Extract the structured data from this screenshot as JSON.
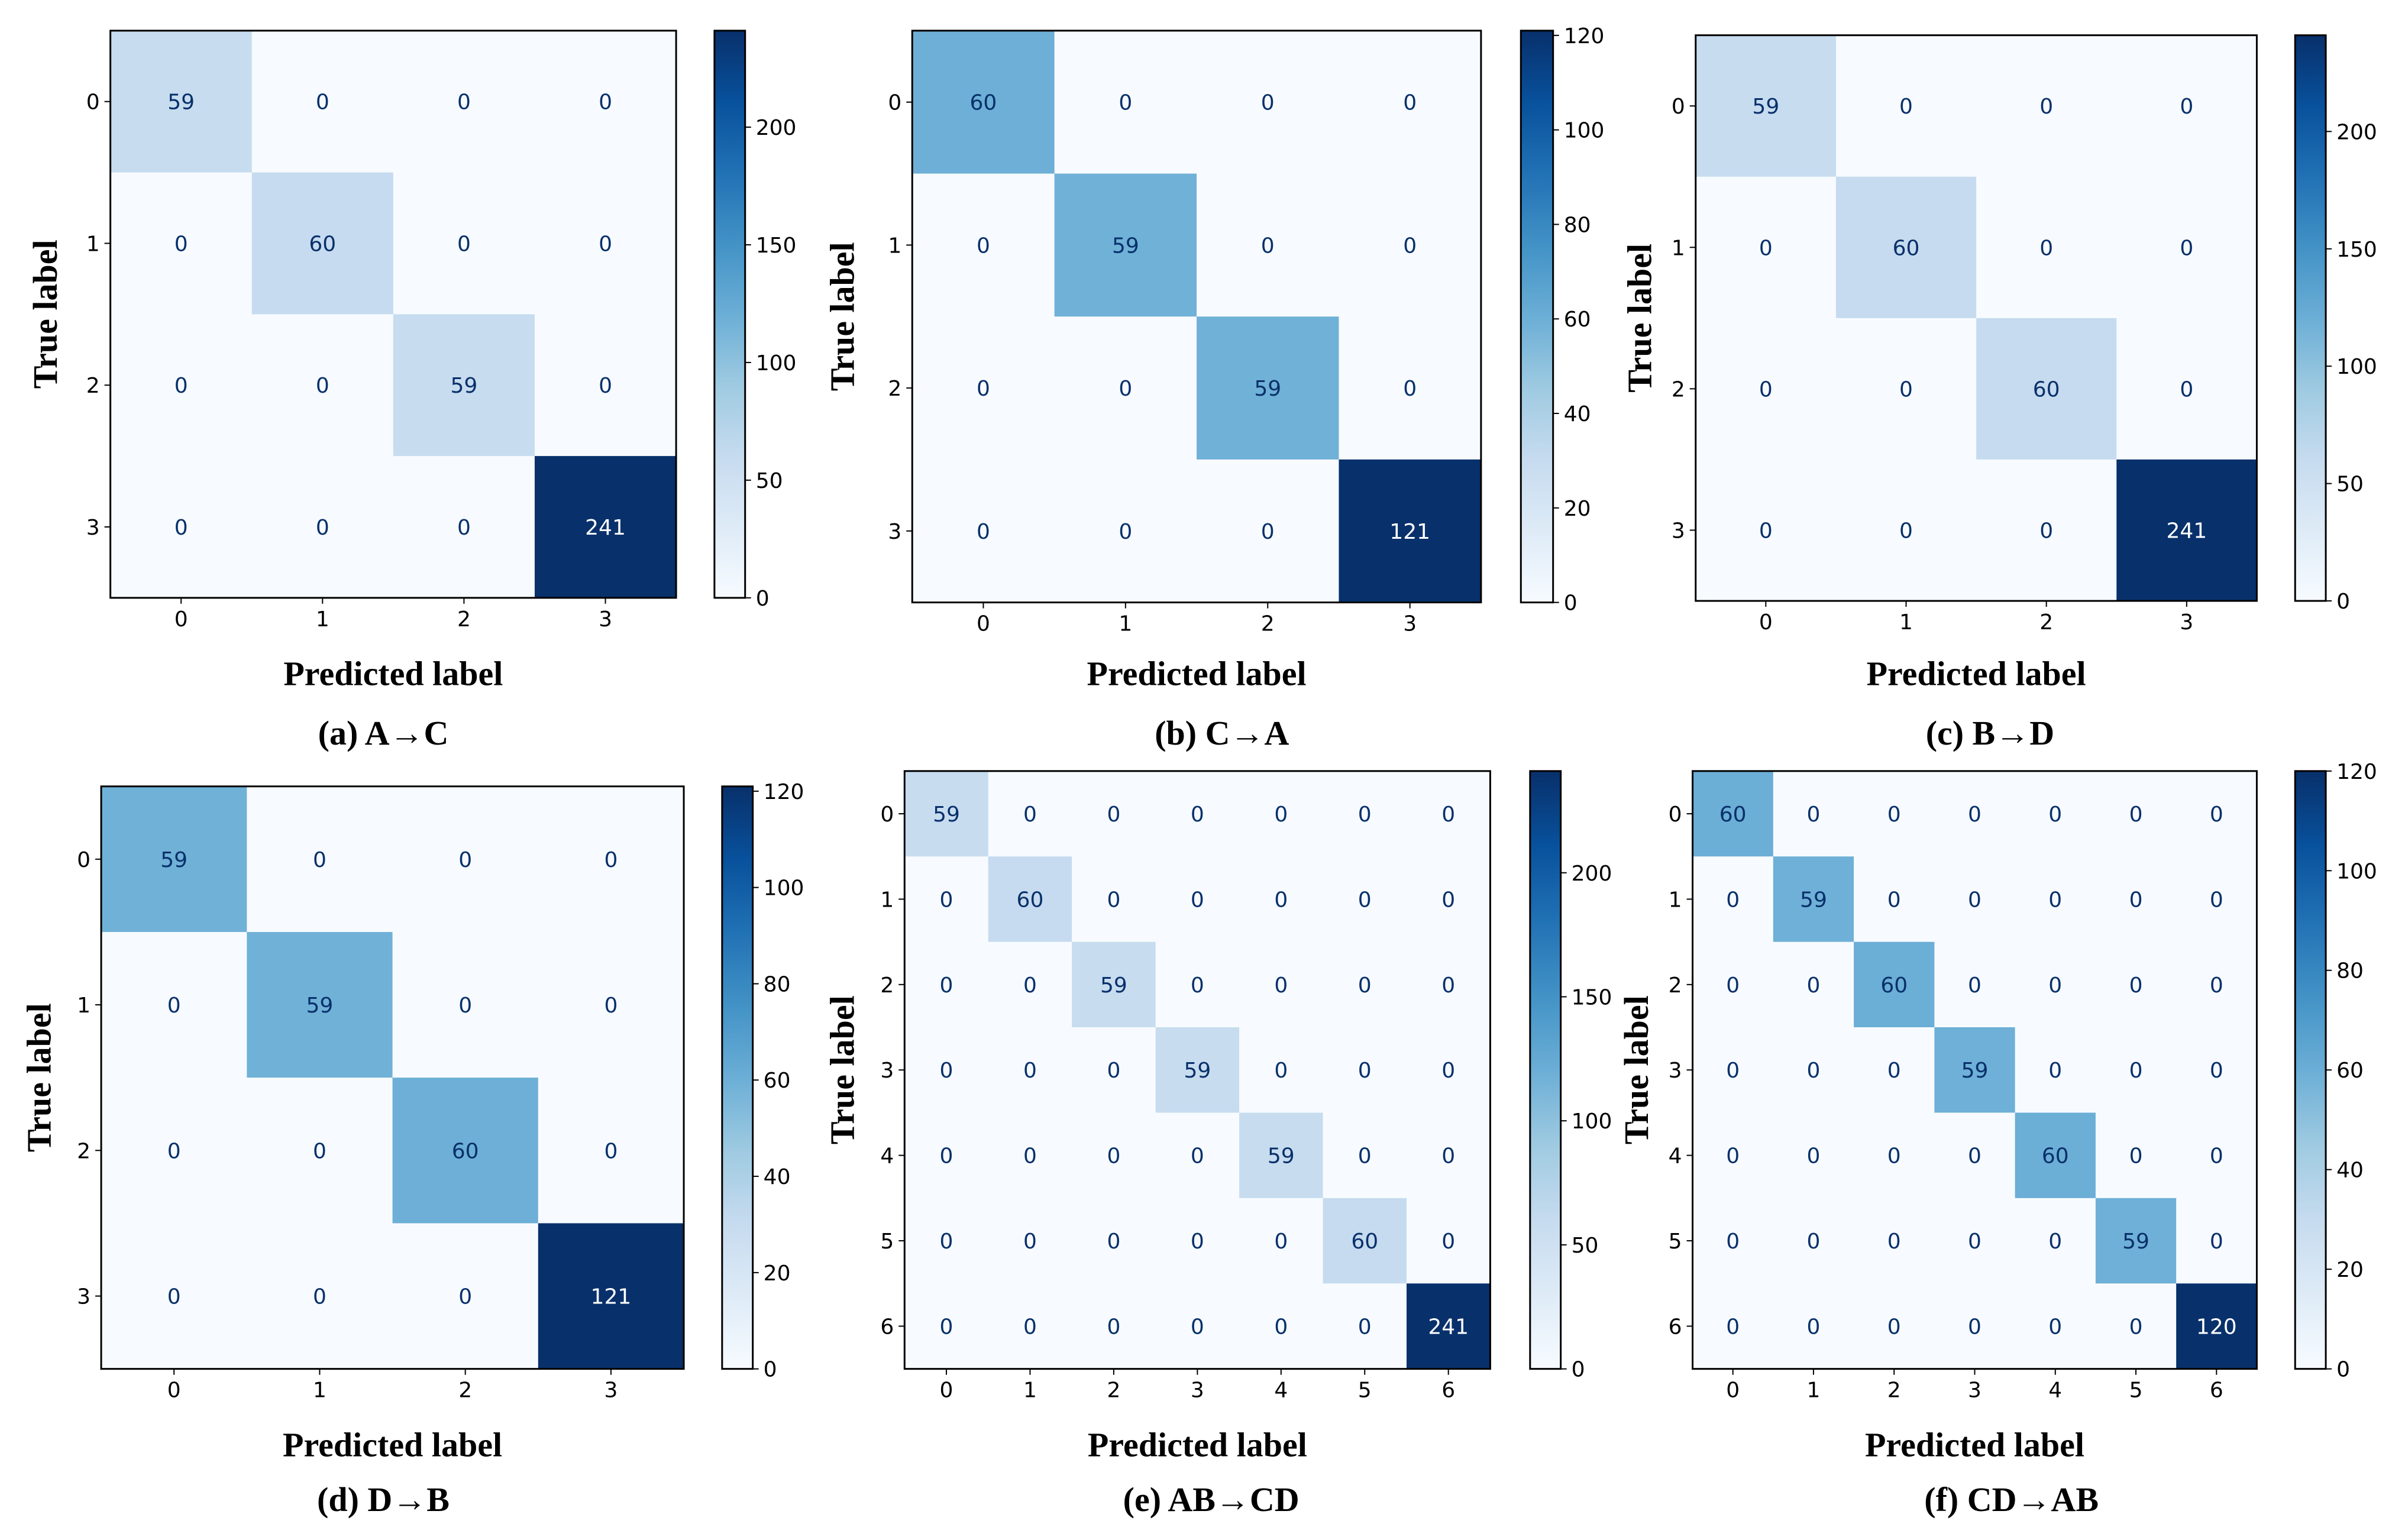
{
  "colormap": [
    "#f7fbff",
    "#deebf7",
    "#c6dbef",
    "#9ecae1",
    "#6baed6",
    "#4292c6",
    "#2171b5",
    "#08519c",
    "#08306b"
  ],
  "dark_text": "#08306b",
  "light_text": "#ffffff",
  "chart_data": [
    {
      "type": "heatmap",
      "caption": "(a) A→C",
      "xlabel": "Predicted label",
      "ylabel": "True label",
      "labels": [
        "0",
        "1",
        "2",
        "3"
      ],
      "matrix": [
        [
          59,
          0,
          0,
          0
        ],
        [
          0,
          60,
          0,
          0
        ],
        [
          0,
          0,
          59,
          0
        ],
        [
          0,
          0,
          0,
          241
        ]
      ],
      "colorbar": {
        "range": [
          0,
          241
        ],
        "ticks": [
          0,
          50,
          100,
          150,
          200
        ]
      }
    },
    {
      "type": "heatmap",
      "caption": "(b) C→A",
      "xlabel": "Predicted label",
      "ylabel": "True label",
      "labels": [
        "0",
        "1",
        "2",
        "3"
      ],
      "matrix": [
        [
          60,
          0,
          0,
          0
        ],
        [
          0,
          59,
          0,
          0
        ],
        [
          0,
          0,
          59,
          0
        ],
        [
          0,
          0,
          0,
          121
        ]
      ],
      "colorbar": {
        "range": [
          0,
          121
        ],
        "ticks": [
          0,
          20,
          40,
          60,
          80,
          100,
          120
        ]
      }
    },
    {
      "type": "heatmap",
      "caption": "(c) B→D",
      "xlabel": "Predicted label",
      "ylabel": "True label",
      "labels": [
        "0",
        "1",
        "2",
        "3"
      ],
      "matrix": [
        [
          59,
          0,
          0,
          0
        ],
        [
          0,
          60,
          0,
          0
        ],
        [
          0,
          0,
          60,
          0
        ],
        [
          0,
          0,
          0,
          241
        ]
      ],
      "colorbar": {
        "range": [
          0,
          241
        ],
        "ticks": [
          0,
          50,
          100,
          150,
          200
        ]
      }
    },
    {
      "type": "heatmap",
      "caption": "(d) D→B",
      "xlabel": "Predicted label",
      "ylabel": "True label",
      "labels": [
        "0",
        "1",
        "2",
        "3"
      ],
      "matrix": [
        [
          59,
          0,
          0,
          0
        ],
        [
          0,
          59,
          0,
          0
        ],
        [
          0,
          0,
          60,
          0
        ],
        [
          0,
          0,
          0,
          121
        ]
      ],
      "colorbar": {
        "range": [
          0,
          121
        ],
        "ticks": [
          0,
          20,
          40,
          60,
          80,
          100,
          120
        ]
      }
    },
    {
      "type": "heatmap",
      "caption": "(e) AB→CD",
      "xlabel": "Predicted label",
      "ylabel": "True label",
      "labels": [
        "0",
        "1",
        "2",
        "3",
        "4",
        "5",
        "6"
      ],
      "matrix": [
        [
          59,
          0,
          0,
          0,
          0,
          0,
          0
        ],
        [
          0,
          60,
          0,
          0,
          0,
          0,
          0
        ],
        [
          0,
          0,
          59,
          0,
          0,
          0,
          0
        ],
        [
          0,
          0,
          0,
          59,
          0,
          0,
          0
        ],
        [
          0,
          0,
          0,
          0,
          59,
          0,
          0
        ],
        [
          0,
          0,
          0,
          0,
          0,
          60,
          0
        ],
        [
          0,
          0,
          0,
          0,
          0,
          0,
          241
        ]
      ],
      "colorbar": {
        "range": [
          0,
          241
        ],
        "ticks": [
          0,
          50,
          100,
          150,
          200
        ]
      }
    },
    {
      "type": "heatmap",
      "caption": "(f) CD→AB",
      "xlabel": "Predicted label",
      "ylabel": "True label",
      "labels": [
        "0",
        "1",
        "2",
        "3",
        "4",
        "5",
        "6"
      ],
      "matrix": [
        [
          60,
          0,
          0,
          0,
          0,
          0,
          0
        ],
        [
          0,
          59,
          0,
          0,
          0,
          0,
          0
        ],
        [
          0,
          0,
          60,
          0,
          0,
          0,
          0
        ],
        [
          0,
          0,
          0,
          59,
          0,
          0,
          0
        ],
        [
          0,
          0,
          0,
          0,
          60,
          0,
          0
        ],
        [
          0,
          0,
          0,
          0,
          0,
          59,
          0
        ],
        [
          0,
          0,
          0,
          0,
          0,
          0,
          120
        ]
      ],
      "colorbar": {
        "range": [
          0,
          120
        ],
        "ticks": [
          0,
          20,
          40,
          60,
          80,
          100,
          120
        ]
      }
    }
  ]
}
